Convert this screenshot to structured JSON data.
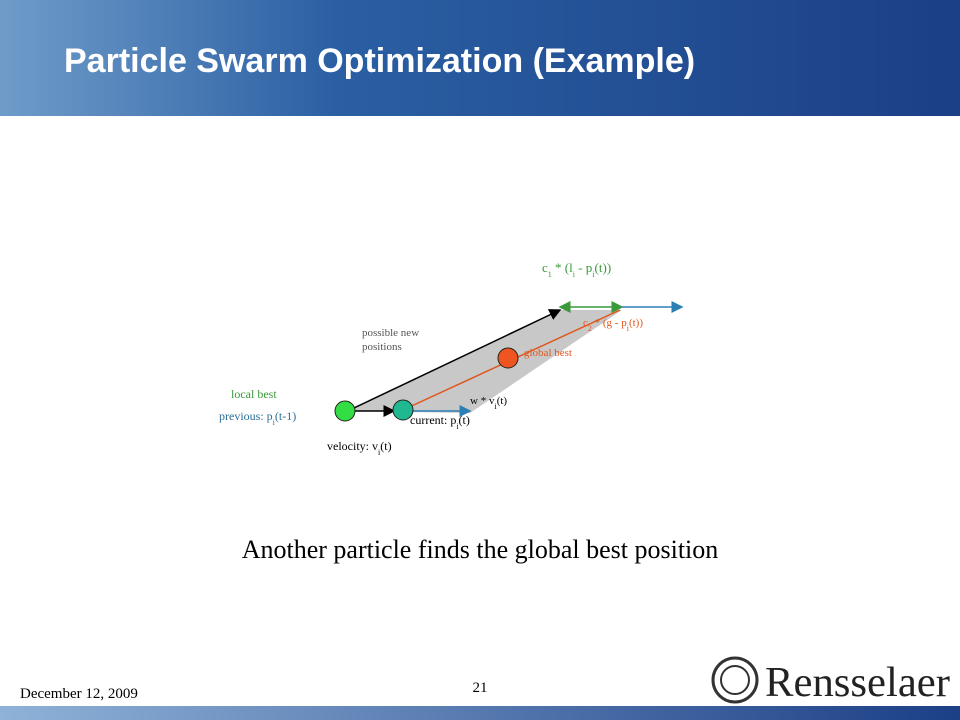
{
  "header": {
    "title": "Particle Swarm Optimization (Example)"
  },
  "diagram": {
    "c1_term": [
      "c",
      "1",
      " * (l",
      "i",
      " - p",
      "i",
      "(t))"
    ],
    "c2_term": [
      "c",
      "2",
      " * (g - p",
      "i",
      "(t))"
    ],
    "possible_new_positions": [
      "possible new",
      "positions"
    ],
    "global_best": "global best",
    "local_best": "local best",
    "previous": [
      "previous: p",
      "i",
      "(t-1)"
    ],
    "current": [
      "current: p",
      "i",
      "(t)"
    ],
    "inertia": [
      "w * v",
      "i",
      "(t)"
    ],
    "velocity": [
      "velocity: v",
      "i",
      "(t)"
    ]
  },
  "caption": "Another particle finds the global best position",
  "footer": {
    "date": "December 12, 2009",
    "page": "21",
    "logo": "Rensselaer"
  }
}
